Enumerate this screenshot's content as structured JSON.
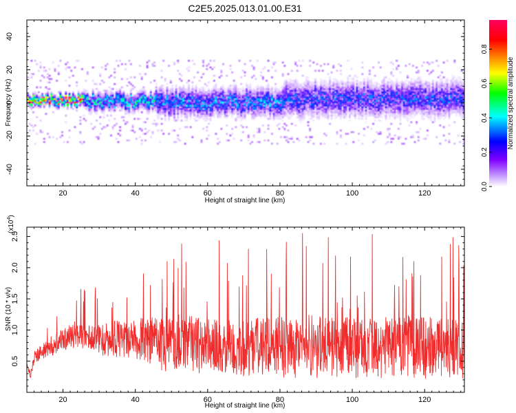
{
  "title": "C2E5.2025.013.01.00.E31",
  "chart_data": [
    {
      "type": "heatmap",
      "xlabel": "Height of straight line (km)",
      "ylabel": "Frequency (Hz)",
      "xlim": [
        10,
        131
      ],
      "ylim": [
        -50,
        50
      ],
      "xticks": [
        20,
        40,
        60,
        80,
        100,
        120
      ],
      "yticks": [
        -40,
        -20,
        0,
        20,
        40
      ],
      "colorbar": {
        "label": "Normalized spectral amplitude",
        "range": [
          0,
          0.97
        ],
        "ticks": [
          "0.0",
          "0.2",
          "0.4",
          "0.6",
          "0.8"
        ],
        "tick_values": [
          0,
          0.2,
          0.4,
          0.6,
          0.8
        ],
        "colormap": [
          "#ffffff",
          "#8000ff",
          "#0000ff",
          "#00ffff",
          "#00ff00",
          "#ffff00",
          "#ff8000",
          "#ff0000",
          "#ff0080"
        ]
      },
      "bands": [
        {
          "x": [
            10,
            25
          ],
          "center": 1.5,
          "halfwidth": 3,
          "peak": 0.85
        },
        {
          "x": [
            25,
            45
          ],
          "center": 0.5,
          "halfwidth": 5,
          "peak": 0.45
        },
        {
          "x": [
            45,
            80
          ],
          "center": 0,
          "halfwidth": 8,
          "peak": 0.35
        },
        {
          "x": [
            80,
            131
          ],
          "center": 2,
          "halfwidth": 10,
          "peak": 0.3
        }
      ],
      "grid": false
    },
    {
      "type": "line",
      "xlabel": "Height of straight line (km)",
      "ylabel": "SNR (10 * v/v)",
      "scale_label": "(x10",
      "scale_exponent": "4",
      "scale_close": ")",
      "xlim": [
        10,
        131
      ],
      "ylim": [
        0,
        2.65
      ],
      "xticks": [
        20,
        40,
        60,
        80,
        100,
        120
      ],
      "yticks": [
        "0.5",
        "1.0",
        "1.5",
        "2.0",
        "2.5"
      ],
      "ytick_values": [
        0.5,
        1.0,
        1.5,
        2.0,
        2.5
      ],
      "series": [
        {
          "color": "#ef2b2b",
          "x": [
            10,
            11,
            12,
            14,
            16,
            18,
            20,
            22,
            24,
            26,
            28,
            30,
            32,
            34,
            36,
            38,
            40,
            42,
            44,
            46,
            48,
            50,
            52,
            54,
            56,
            58,
            60,
            62,
            64,
            66,
            68,
            70,
            72,
            74,
            76,
            78,
            80,
            82,
            84,
            86,
            88,
            90,
            92,
            94,
            96,
            98,
            100,
            102,
            104,
            106,
            108,
            110,
            112,
            114,
            116,
            118,
            120,
            122,
            124,
            126,
            128,
            130,
            131
          ],
          "y": [
            0.45,
            0.25,
            0.55,
            0.65,
            0.72,
            0.78,
            0.85,
            0.88,
            0.9,
            0.9,
            0.88,
            0.85,
            0.85,
            0.87,
            0.85,
            0.85,
            0.85,
            0.85,
            0.83,
            0.8,
            0.75,
            0.75,
            0.8,
            0.78,
            0.78,
            0.75,
            0.72,
            0.72,
            0.75,
            0.72,
            0.7,
            0.7,
            0.72,
            0.72,
            0.75,
            0.75,
            0.75,
            0.72,
            0.7,
            0.72,
            0.75,
            0.72,
            0.72,
            0.7,
            0.72,
            0.72,
            0.72,
            0.7,
            0.7,
            0.72,
            0.72,
            0.7,
            0.72,
            0.75,
            0.75,
            0.72,
            0.7,
            0.72,
            0.72,
            0.7,
            0.7,
            0.72,
            0.7
          ],
          "spread": [
            0.1,
            0.15,
            0.2,
            0.25,
            0.3,
            0.35,
            0.35,
            0.4,
            0.4,
            0.4,
            0.45,
            0.5,
            0.55,
            0.6,
            0.6,
            0.6,
            0.65,
            0.7,
            0.75,
            0.8,
            0.85,
            0.9,
            0.9,
            0.9,
            0.9,
            0.9,
            0.9,
            0.9,
            0.9,
            0.9,
            0.9,
            0.9,
            0.9,
            0.95,
            0.95,
            0.95,
            1.0,
            1.0,
            1.0,
            1.0,
            1.0,
            1.0,
            1.0,
            1.0,
            1.0,
            1.0,
            1.0,
            1.0,
            1.0,
            1.0,
            1.0,
            1.0,
            1.0,
            1.0,
            1.0,
            1.0,
            1.0,
            1.0,
            1.0,
            1.0,
            1.0,
            1.0,
            1.0
          ]
        }
      ]
    }
  ]
}
